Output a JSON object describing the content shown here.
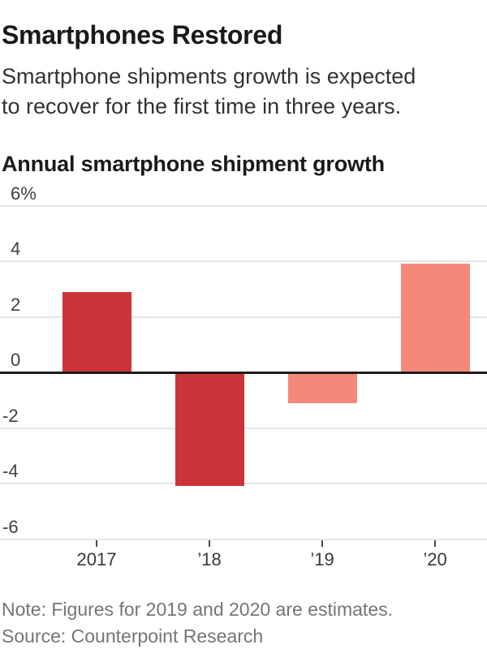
{
  "header": {
    "title": "Smartphones Restored",
    "subtitle_line1": "Smartphone shipments growth is expected",
    "subtitle_line2": "to recover for the first time in three years."
  },
  "chart_data": {
    "type": "bar",
    "title": "Annual smartphone shipment growth",
    "unit": "%",
    "categories": [
      "2017",
      "’18",
      "’19",
      "’20"
    ],
    "values": [
      2.9,
      -4.1,
      -1.1,
      3.9
    ],
    "estimates": [
      false,
      false,
      true,
      true
    ],
    "colors": {
      "actual_bar": "#cb3338",
      "estimate_bar": "#f4897a",
      "gridline": "#e6e6e6",
      "zero_line": "#1c1c1c"
    },
    "y_ticks": [
      {
        "label": "6%",
        "value": 6
      },
      {
        "label": "4",
        "value": 4
      },
      {
        "label": "2",
        "value": 2
      },
      {
        "label": "0",
        "value": 0
      },
      {
        "label": "-2",
        "value": -2
      },
      {
        "label": "-4",
        "value": -4
      },
      {
        "label": "-6",
        "value": -6
      }
    ],
    "ylim": [
      -6,
      6
    ],
    "grid": true,
    "baseline": 0,
    "legend": "none"
  },
  "footer": {
    "note": "Note: Figures for 2019 and 2020 are estimates.",
    "source": "Source: Counterpoint Research"
  }
}
